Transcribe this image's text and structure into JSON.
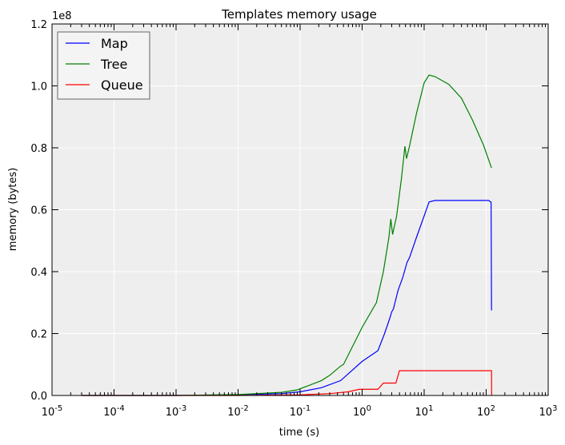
{
  "chart_data": {
    "type": "line",
    "title": "Templates memory usage",
    "xlabel": "time (s)",
    "ylabel": "memory (bytes)",
    "x_scale": "log",
    "xlim": [
      1e-05,
      1000
    ],
    "ylim": [
      0,
      120000000
    ],
    "y_offset_label": "1e8",
    "grid": true,
    "legend_position": "top-left",
    "x_ticks": [
      {
        "base": "10",
        "exp": "-5"
      },
      {
        "base": "10",
        "exp": "-4"
      },
      {
        "base": "10",
        "exp": "-3"
      },
      {
        "base": "10",
        "exp": "-2"
      },
      {
        "base": "10",
        "exp": "-1"
      },
      {
        "base": "10",
        "exp": "0"
      },
      {
        "base": "10",
        "exp": "1"
      },
      {
        "base": "10",
        "exp": "2"
      },
      {
        "base": "10",
        "exp": "3"
      }
    ],
    "y_ticks": [
      "0.0",
      "0.2",
      "0.4",
      "0.6",
      "0.8",
      "1.0",
      "1.2"
    ],
    "series": [
      {
        "name": "Map",
        "color": "#0000ff",
        "points": [
          [
            3e-05,
            0
          ],
          [
            0.001,
            0
          ],
          [
            0.01,
            200000
          ],
          [
            0.05,
            600000
          ],
          [
            0.1,
            1200000
          ],
          [
            0.22,
            2500000
          ],
          [
            0.45,
            4800000
          ],
          [
            1.0,
            11000000
          ],
          [
            1.8,
            14500000
          ],
          [
            2.3,
            20000000
          ],
          [
            2.8,
            25000000
          ],
          [
            3.0,
            27000000
          ],
          [
            3.2,
            28000000
          ],
          [
            3.8,
            34000000
          ],
          [
            4.5,
            38000000
          ],
          [
            5.3,
            43000000
          ],
          [
            5.8,
            44500000
          ],
          [
            7.5,
            51000000
          ],
          [
            10,
            58000000
          ],
          [
            12,
            62500000
          ],
          [
            15,
            63000000
          ],
          [
            50,
            63000000
          ],
          [
            110,
            63000000
          ],
          [
            118,
            62500000
          ],
          [
            120,
            62500000
          ],
          [
            121,
            45000000
          ],
          [
            122,
            27500000
          ]
        ]
      },
      {
        "name": "Tree",
        "color": "#008000",
        "points": [
          [
            3e-05,
            0
          ],
          [
            0.001,
            0
          ],
          [
            0.01,
            300000
          ],
          [
            0.05,
            1000000
          ],
          [
            0.09,
            1800000
          ],
          [
            0.22,
            4800000
          ],
          [
            0.3,
            6500000
          ],
          [
            0.45,
            9500000
          ],
          [
            0.5,
            10000000
          ],
          [
            1.0,
            22000000
          ],
          [
            1.7,
            30000000
          ],
          [
            2.2,
            40000000
          ],
          [
            2.7,
            51000000
          ],
          [
            2.9,
            57000000
          ],
          [
            3.1,
            52000000
          ],
          [
            3.6,
            58000000
          ],
          [
            4.3,
            70000000
          ],
          [
            4.9,
            80500000
          ],
          [
            5.2,
            76500000
          ],
          [
            5.8,
            80500000
          ],
          [
            7.5,
            91000000
          ],
          [
            10,
            101000000
          ],
          [
            12,
            103500000
          ],
          [
            15,
            103000000
          ],
          [
            25,
            100500000
          ],
          [
            40,
            96000000
          ],
          [
            60,
            89000000
          ],
          [
            90,
            81000000
          ],
          [
            122,
            73500000
          ]
        ]
      },
      {
        "name": "Queue",
        "color": "#ff0000",
        "points": [
          [
            3e-05,
            0
          ],
          [
            0.01,
            0
          ],
          [
            0.1,
            200000
          ],
          [
            0.3,
            600000
          ],
          [
            0.6,
            1200000
          ],
          [
            0.9,
            2000000
          ],
          [
            1.8,
            2000000
          ],
          [
            2.2,
            4000000
          ],
          [
            3.5,
            4000000
          ],
          [
            4.0,
            8000000
          ],
          [
            10,
            8000000
          ],
          [
            120,
            8000000
          ],
          [
            122,
            8000000
          ],
          [
            122.5,
            0
          ]
        ]
      }
    ]
  }
}
